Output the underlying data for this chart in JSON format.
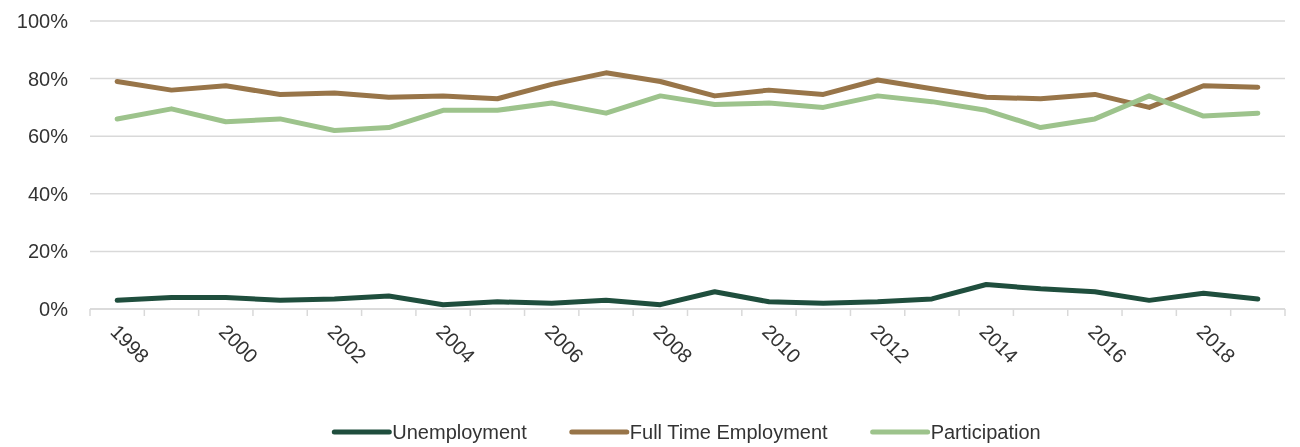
{
  "chart_data": {
    "type": "line",
    "categories": [
      "1998",
      null,
      "2000",
      null,
      "2002",
      null,
      "2004",
      null,
      "2006",
      null,
      "2008",
      null,
      "2010",
      null,
      "2012",
      null,
      "2014",
      null,
      "2016",
      null,
      "2018",
      null
    ],
    "series": [
      {
        "name": "Unemployment",
        "color": "#1f4e3d",
        "values": [
          3,
          4,
          4,
          3,
          3.5,
          4.5,
          1.5,
          2.5,
          2,
          3,
          1.5,
          6,
          2.5,
          2,
          2.5,
          3.5,
          8.5,
          7,
          6,
          3,
          5.5,
          3.5
        ]
      },
      {
        "name": "Full Time Employment",
        "color": "#987549",
        "values": [
          79,
          76,
          77.5,
          74.5,
          75,
          73.5,
          74,
          73,
          78,
          82,
          79,
          74,
          76,
          74.5,
          79.5,
          76.5,
          73.5,
          73,
          74.5,
          70,
          77.5,
          77
        ]
      },
      {
        "name": "Participation",
        "color": "#9dc38c",
        "values": [
          66,
          69.5,
          65,
          66,
          62,
          63,
          69,
          69,
          71.5,
          68,
          74,
          71,
          71.5,
          70,
          74,
          72,
          69,
          63,
          66,
          74,
          67,
          68
        ]
      }
    ],
    "ylim": [
      0,
      100
    ],
    "yticks": [
      {
        "value": 0,
        "label": "0%"
      },
      {
        "value": 20,
        "label": "20%"
      },
      {
        "value": 40,
        "label": "40%"
      },
      {
        "value": 60,
        "label": "60%"
      },
      {
        "value": 80,
        "label": "80%"
      },
      {
        "value": 100,
        "label": "100%"
      }
    ],
    "grid": "y",
    "legend": "bottom",
    "marker": "none",
    "line_style": "solid"
  }
}
